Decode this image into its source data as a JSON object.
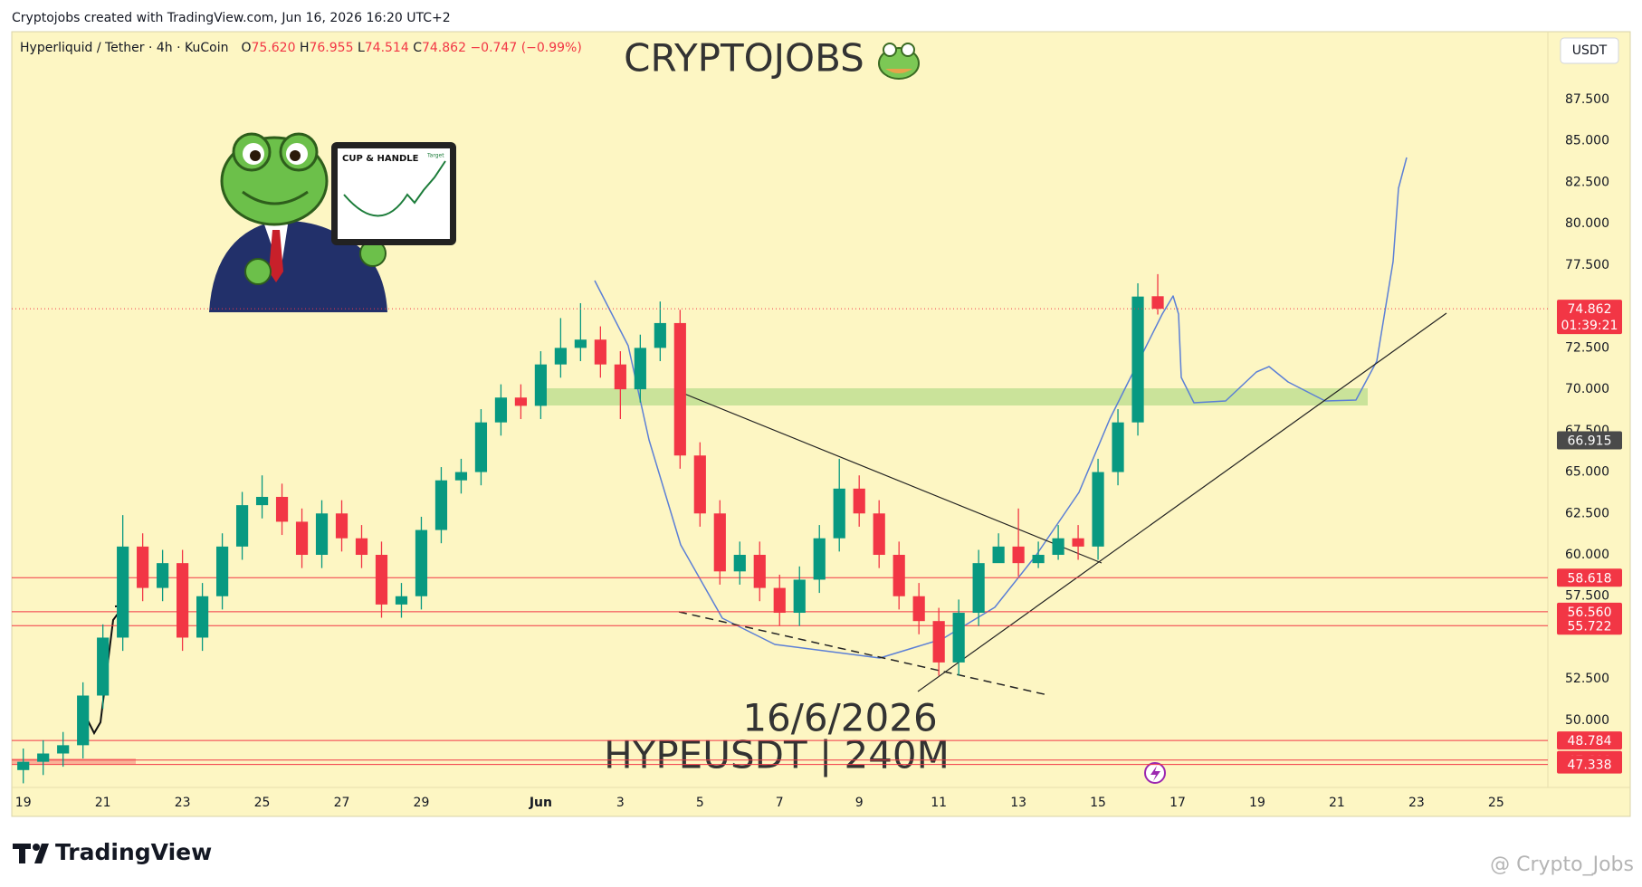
{
  "header": {
    "credit": "Cryptojobs created with TradingView.com, Jun 16, 2026 16:20 UTC+2"
  },
  "chart_data": {
    "type": "candlestick",
    "title": "CRYPTOJOBS",
    "symbol": "Hyperliquid / Tether · 4h · KuCoin",
    "ohlc": [
      {
        "key": "O",
        "value": "75.620"
      },
      {
        "key": "H",
        "value": "76.955"
      },
      {
        "key": "L",
        "value": "74.514"
      },
      {
        "key": "C",
        "value": "74.862"
      }
    ],
    "change": "−0.747 (−0.99%)",
    "currency": "USDT",
    "annotations": [
      "16/6/2026",
      "HYPEUSDT | 240M"
    ],
    "illustration_text": [
      "CUP & HANDLE",
      "Target"
    ],
    "x": [
      "2026-05-19T00:00",
      "2026-05-19T12:00",
      "2026-05-20T00:00",
      "2026-05-20T12:00",
      "2026-05-21T00:00",
      "2026-05-21T12:00",
      "2026-05-22T00:00",
      "2026-05-22T12:00",
      "2026-05-23T00:00",
      "2026-05-23T12:00",
      "2026-05-24T00:00",
      "2026-05-24T12:00",
      "2026-05-25T00:00",
      "2026-05-25T12:00",
      "2026-05-26T00:00",
      "2026-05-26T12:00",
      "2026-05-27T00:00",
      "2026-05-27T12:00",
      "2026-05-28T00:00",
      "2026-05-28T12:00",
      "2026-05-29T00:00",
      "2026-05-29T12:00",
      "2026-05-30T00:00",
      "2026-05-30T12:00",
      "2026-05-31T00:00",
      "2026-05-31T12:00",
      "2026-06-01T00:00",
      "2026-06-01T12:00",
      "2026-06-02T00:00",
      "2026-06-02T12:00",
      "2026-06-03T00:00",
      "2026-06-03T12:00",
      "2026-06-04T00:00",
      "2026-06-04T12:00",
      "2026-06-05T00:00",
      "2026-06-05T12:00",
      "2026-06-06T00:00",
      "2026-06-06T12:00",
      "2026-06-07T00:00",
      "2026-06-07T12:00",
      "2026-06-08T00:00",
      "2026-06-08T12:00",
      "2026-06-09T00:00",
      "2026-06-09T12:00",
      "2026-06-10T00:00",
      "2026-06-10T12:00",
      "2026-06-11T00:00",
      "2026-06-11T12:00",
      "2026-06-12T00:00",
      "2026-06-12T12:00",
      "2026-06-13T00:00",
      "2026-06-13T12:00",
      "2026-06-14T00:00",
      "2026-06-14T12:00",
      "2026-06-15T00:00",
      "2026-06-15T12:00",
      "2026-06-16T00:00",
      "2026-06-16T12:00"
    ],
    "open": [
      47.0,
      47.5,
      48.0,
      48.5,
      51.5,
      55.0,
      60.5,
      58.0,
      59.5,
      55.0,
      57.5,
      60.5,
      63.0,
      63.5,
      62.0,
      60.0,
      62.5,
      61.0,
      60.0,
      57.0,
      57.5,
      61.5,
      64.5,
      65.0,
      68.0,
      69.5,
      69.0,
      71.5,
      72.5,
      73.0,
      71.5,
      70.0,
      72.5,
      74.0,
      66.0,
      62.5,
      59.0,
      60.0,
      58.0,
      56.5,
      58.5,
      61.0,
      64.0,
      62.5,
      60.0,
      57.5,
      56.0,
      53.5,
      56.5,
      59.5,
      60.5,
      59.5,
      60.0,
      61.0,
      60.5,
      65.0,
      68.0,
      75.62
    ],
    "high": [
      48.3,
      48.8,
      49.3,
      52.3,
      55.8,
      62.4,
      61.3,
      60.3,
      60.3,
      58.3,
      61.3,
      63.8,
      64.8,
      64.3,
      62.8,
      63.3,
      63.3,
      61.8,
      60.8,
      58.3,
      62.3,
      65.3,
      65.8,
      68.8,
      70.3,
      70.3,
      72.3,
      74.3,
      75.2,
      73.8,
      72.3,
      73.3,
      75.3,
      74.8,
      66.8,
      63.3,
      60.8,
      60.8,
      58.8,
      59.3,
      61.8,
      65.8,
      64.8,
      63.3,
      60.8,
      58.3,
      56.8,
      57.3,
      60.3,
      61.3,
      62.8,
      60.8,
      61.8,
      61.8,
      65.8,
      68.8,
      76.4,
      76.955
    ],
    "low": [
      46.2,
      46.7,
      47.2,
      47.7,
      50.7,
      54.2,
      57.2,
      57.2,
      54.2,
      54.2,
      56.7,
      59.7,
      62.2,
      61.2,
      59.2,
      59.2,
      60.2,
      59.2,
      56.2,
      56.2,
      56.7,
      60.7,
      63.7,
      64.2,
      67.2,
      68.2,
      68.2,
      70.7,
      71.7,
      70.7,
      68.2,
      69.2,
      71.7,
      65.2,
      61.7,
      58.2,
      58.2,
      57.2,
      55.7,
      55.7,
      57.7,
      60.2,
      61.7,
      59.2,
      56.7,
      55.2,
      52.7,
      52.7,
      55.7,
      59.7,
      58.7,
      59.2,
      59.7,
      59.7,
      59.7,
      64.2,
      67.2,
      74.514
    ],
    "close": [
      47.5,
      48.0,
      48.5,
      51.5,
      55.0,
      60.5,
      58.0,
      59.5,
      55.0,
      57.5,
      60.5,
      63.0,
      63.5,
      62.0,
      60.0,
      62.5,
      61.0,
      60.0,
      57.0,
      57.5,
      61.5,
      64.5,
      65.0,
      68.0,
      69.5,
      69.0,
      71.5,
      72.5,
      73.0,
      71.5,
      70.0,
      72.5,
      74.0,
      66.0,
      62.5,
      59.0,
      60.0,
      58.0,
      56.5,
      58.5,
      61.0,
      64.0,
      62.5,
      60.0,
      57.5,
      56.0,
      53.5,
      56.5,
      59.5,
      60.5,
      59.5,
      60.0,
      61.0,
      60.5,
      65.0,
      68.0,
      75.6,
      74.862
    ],
    "up_color": "#089981",
    "down_color": "#f23645",
    "xlim": [
      "2026-05-18T17:04",
      "2026-06-26T07:12"
    ],
    "xticks": [
      {
        "value": "2026-05-19",
        "label": "19"
      },
      {
        "value": "2026-05-21",
        "label": "21"
      },
      {
        "value": "2026-05-23",
        "label": "23"
      },
      {
        "value": "2026-05-25",
        "label": "25"
      },
      {
        "value": "2026-05-27",
        "label": "27"
      },
      {
        "value": "2026-05-29",
        "label": "29"
      },
      {
        "value": "2026-06-01",
        "label": "Jun"
      },
      {
        "value": "2026-06-03",
        "label": "3"
      },
      {
        "value": "2026-06-05",
        "label": "5"
      },
      {
        "value": "2026-06-07",
        "label": "7"
      },
      {
        "value": "2026-06-09",
        "label": "9"
      },
      {
        "value": "2026-06-11",
        "label": "11"
      },
      {
        "value": "2026-06-13",
        "label": "13"
      },
      {
        "value": "2026-06-15",
        "label": "15"
      },
      {
        "value": "2026-06-17",
        "label": "17"
      },
      {
        "value": "2026-06-19",
        "label": "19"
      },
      {
        "value": "2026-06-21",
        "label": "21"
      },
      {
        "value": "2026-06-23",
        "label": "23"
      },
      {
        "value": "2026-06-25",
        "label": "25"
      }
    ],
    "ylim": [
      45.95,
      91.6
    ],
    "yticks": [
      {
        "value": 50,
        "label": "50.000"
      },
      {
        "value": 52.5,
        "label": "52.500"
      },
      {
        "value": 57.5,
        "label": "57.500"
      },
      {
        "value": 60,
        "label": "60.000"
      },
      {
        "value": 62.5,
        "label": "62.500"
      },
      {
        "value": 65,
        "label": "65.000"
      },
      {
        "value": 67.5,
        "label": "67.500"
      },
      {
        "value": 70,
        "label": "70.000"
      },
      {
        "value": 72.5,
        "label": "72.500"
      },
      {
        "value": 77.5,
        "label": "77.500"
      },
      {
        "value": 80,
        "label": "80.000"
      },
      {
        "value": 82.5,
        "label": "82.500"
      },
      {
        "value": 85,
        "label": "85.000"
      },
      {
        "value": 87.5,
        "label": "87.500"
      }
    ],
    "levels": [
      58.618,
      {
        "value": 56.56,
        "label": "56.560"
      },
      55.722,
      48.784,
      47.601,
      47.338
    ],
    "level_color": "#f23645",
    "last_price": {
      "value": 74.862,
      "countdown": "01:39:21"
    },
    "marker": 66.915
  },
  "footer": {
    "brand": "TradingView",
    "watermark": "@ Crypto_Jobs"
  }
}
